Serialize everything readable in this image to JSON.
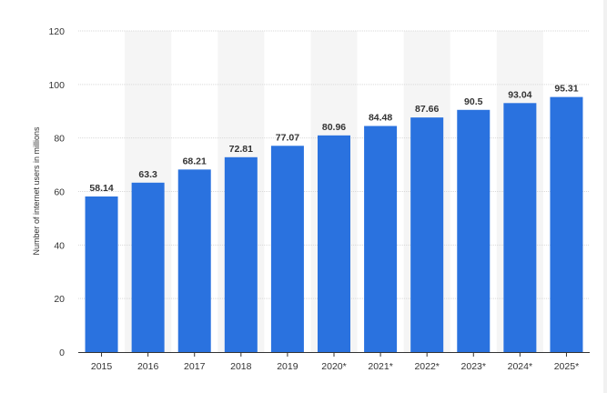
{
  "chart_data": {
    "type": "bar",
    "categories": [
      "2015",
      "2016",
      "2017",
      "2018",
      "2019",
      "2020*",
      "2021*",
      "2022*",
      "2023*",
      "2024*",
      "2025*"
    ],
    "values": [
      58.14,
      63.3,
      68.21,
      72.81,
      77.07,
      80.96,
      84.48,
      87.66,
      90.5,
      93.04,
      95.31
    ],
    "value_labels": [
      "58.14",
      "63.3",
      "68.21",
      "72.81",
      "77.07",
      "80.96",
      "84.48",
      "87.66",
      "90.5",
      "93.04",
      "95.31"
    ],
    "title": "",
    "xlabel": "",
    "ylabel": "Number of internet users in millions",
    "ylim": [
      0,
      120
    ],
    "yticks": [
      "0",
      "20",
      "40",
      "60",
      "80",
      "100",
      "120"
    ],
    "grid": true,
    "legend": "none",
    "colors": {
      "bar": "#2a72df",
      "grid": "#d9d9d9",
      "band": "#f5f5f5",
      "axis": "#333333",
      "tick_text": "#333333",
      "label_text": "#333333"
    }
  }
}
